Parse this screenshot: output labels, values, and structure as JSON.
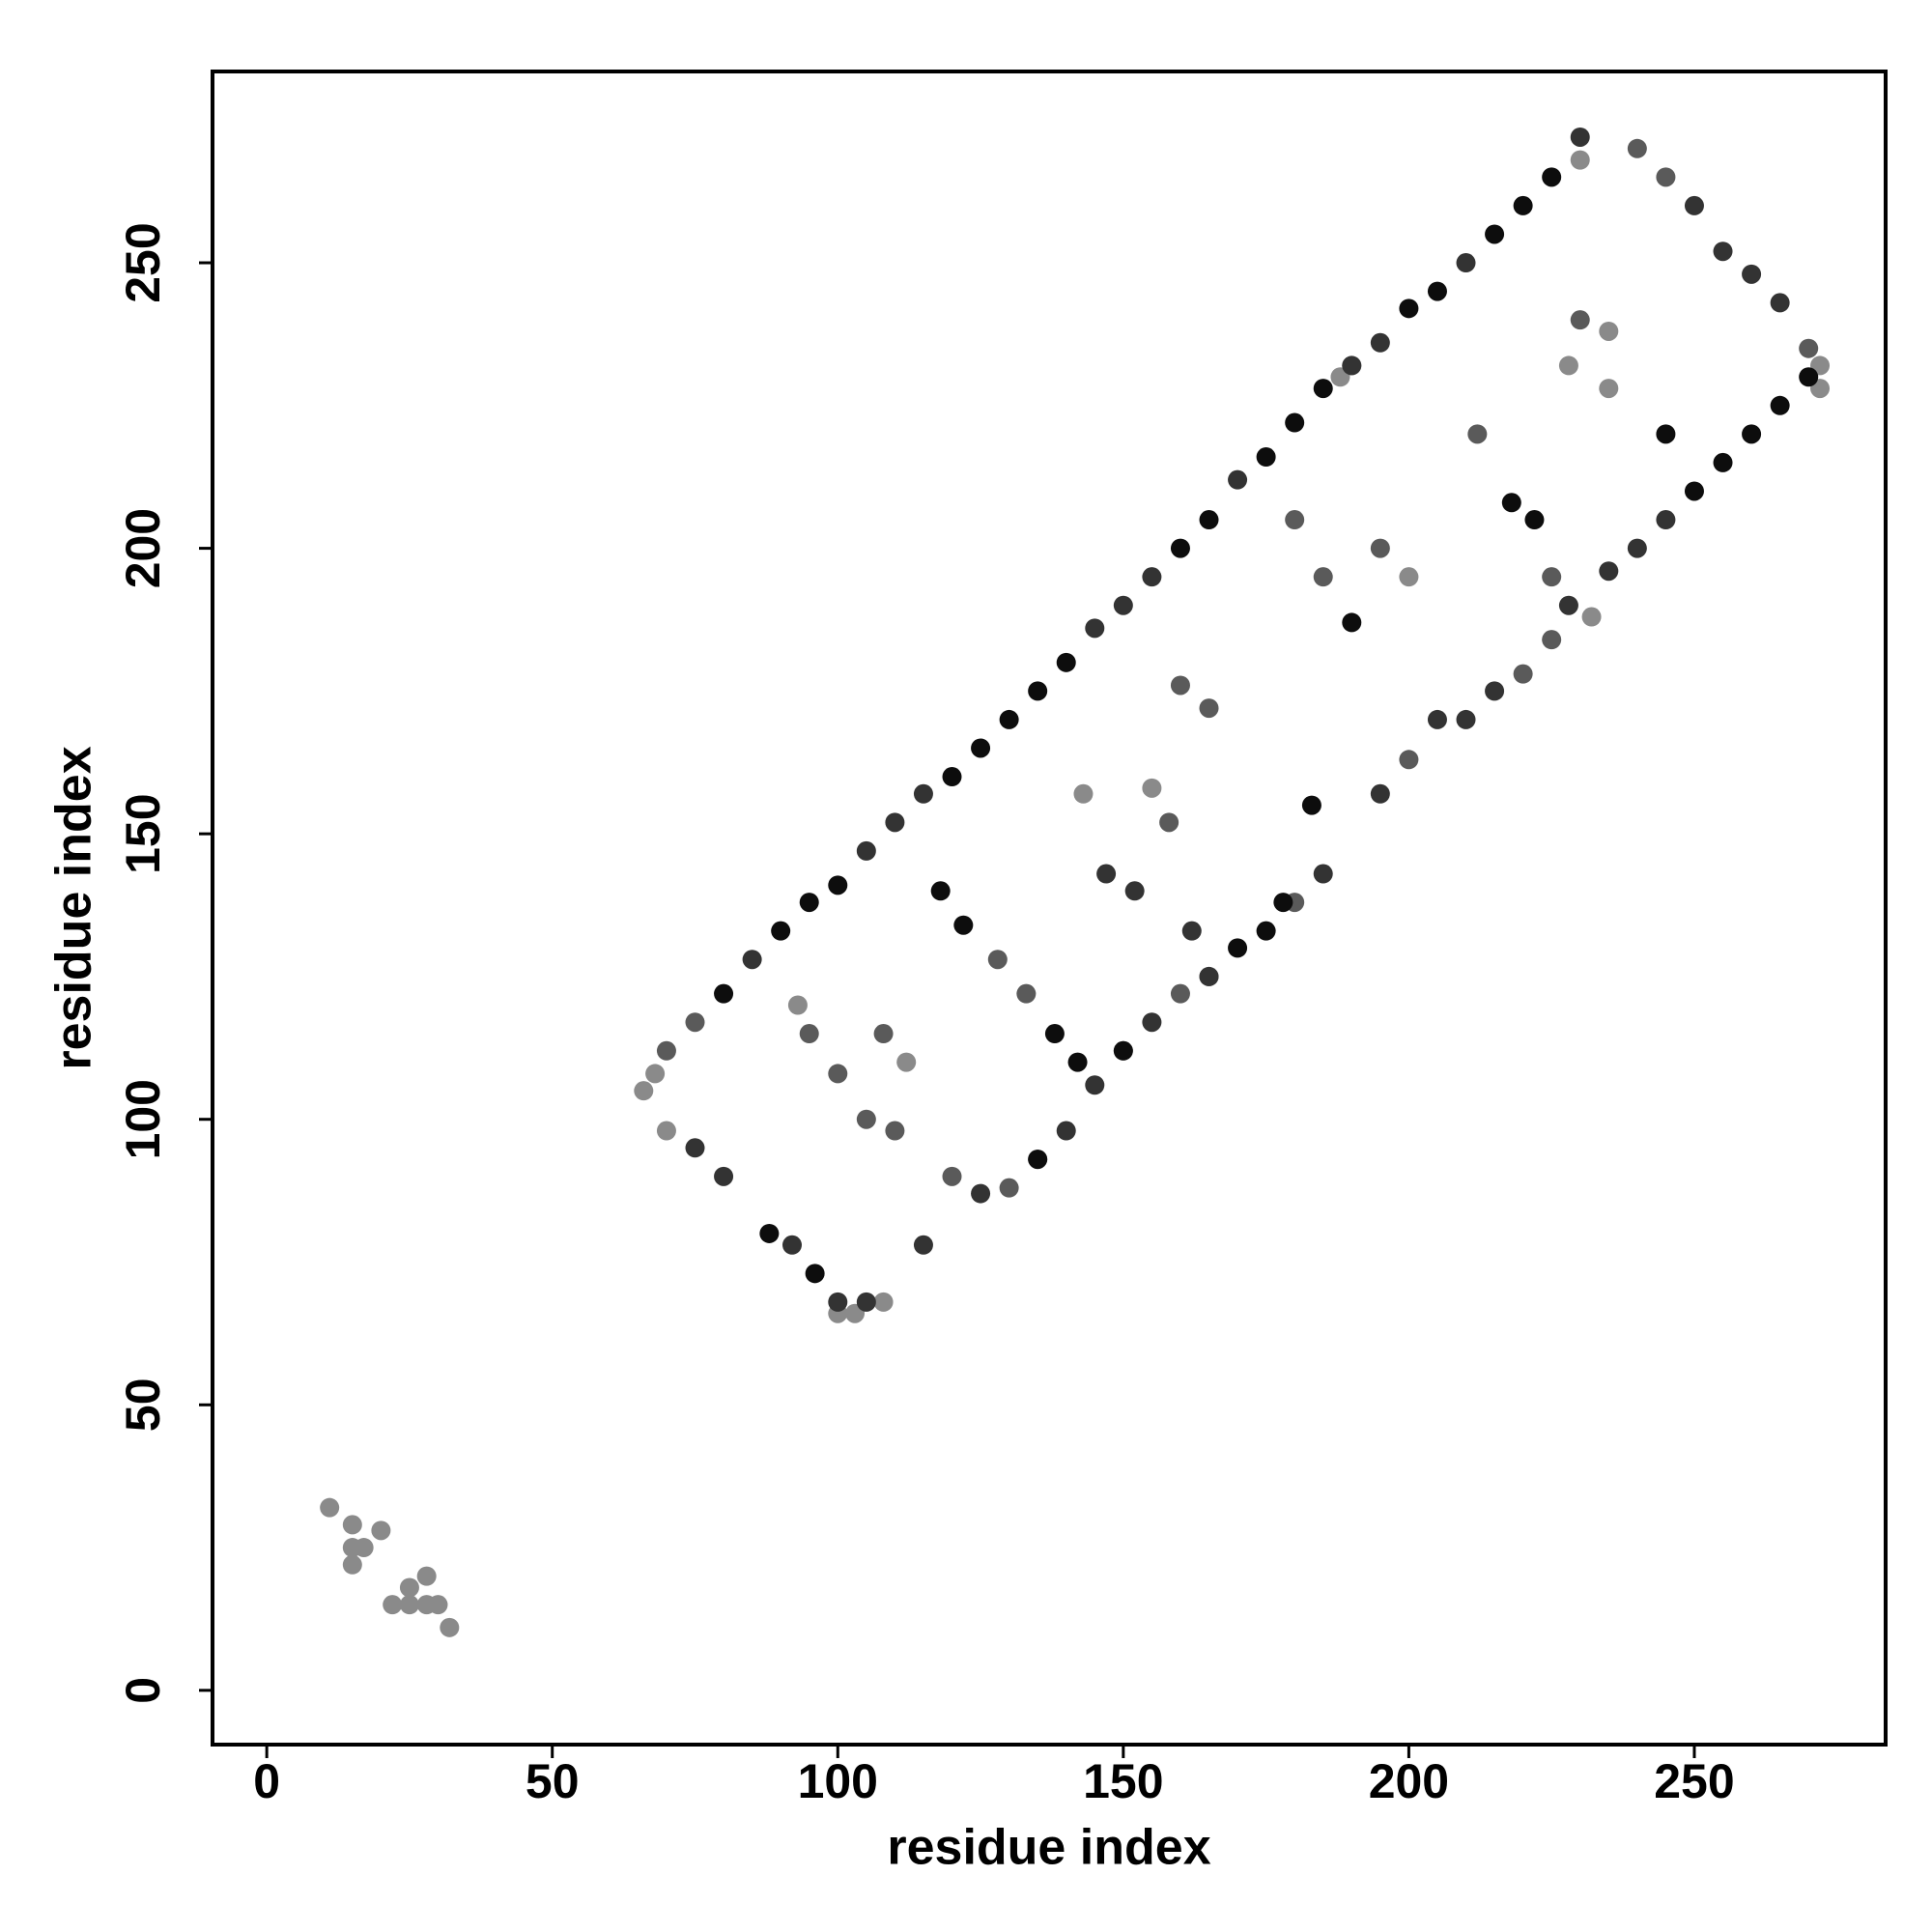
{
  "chart_data": {
    "type": "scatter",
    "xlabel": "residue index",
    "ylabel": "residue index",
    "xlim": [
      -9.5,
      283.5
    ],
    "ylim": [
      -9.5,
      283.5
    ],
    "xticks": [
      0,
      50,
      100,
      150,
      200,
      250
    ],
    "yticks": [
      0,
      50,
      100,
      150,
      200,
      250
    ],
    "grid": false,
    "series": [
      {
        "color": "#8a8a8a",
        "x": [
          66,
          68,
          70,
          100,
          103,
          108,
          11,
          15,
          15,
          15,
          17,
          20,
          22,
          25,
          25,
          28,
          28,
          30,
          32,
          272,
          272,
          230,
          235,
          228,
          232,
          112,
          200,
          155,
          190,
          235,
          188,
          143,
          93
        ],
        "values": [
          105,
          108,
          98,
          66,
          66,
          68,
          32,
          29,
          25,
          22,
          25,
          28,
          15,
          18,
          15,
          20,
          15,
          15,
          11,
          232,
          228,
          268,
          238,
          232,
          188,
          110,
          195,
          158,
          232,
          228,
          230,
          157,
          120
        ]
      },
      {
        "color": "#5a5a5a",
        "x": [
          70,
          75,
          110,
          120,
          130,
          135,
          150,
          160,
          165,
          180,
          200,
          220,
          225,
          240,
          245,
          270,
          95,
          100,
          105,
          128,
          133,
          160,
          165,
          180,
          185,
          212,
          225,
          230,
          108,
          158,
          195
        ],
        "values": [
          112,
          117,
          98,
          90,
          88,
          93,
          112,
          122,
          125,
          138,
          163,
          178,
          184,
          270,
          265,
          235,
          115,
          108,
          100,
          128,
          122,
          176,
          172,
          205,
          195,
          220,
          195,
          240,
          115,
          152,
          200
        ]
      },
      {
        "color": "#333333",
        "x": [
          85,
          105,
          110,
          115,
          145,
          150,
          155,
          170,
          190,
          195,
          210,
          230,
          105,
          115,
          125,
          140,
          145,
          155,
          165,
          185,
          195,
          210,
          215,
          235,
          240,
          245,
          255,
          260,
          265,
          75,
          80,
          92,
          100,
          147,
          152,
          162,
          205,
          228,
          250
        ],
        "values": [
          128,
          147,
          152,
          157,
          186,
          190,
          195,
          212,
          232,
          236,
          250,
          272,
          68,
          78,
          87,
          98,
          106,
          117,
          125,
          143,
          157,
          170,
          175,
          196,
          200,
          205,
          252,
          248,
          243,
          95,
          90,
          78,
          68,
          143,
          140,
          133,
          170,
          190,
          260
        ]
      },
      {
        "color": "#0d0d0d",
        "x": [
          80,
          90,
          95,
          100,
          120,
          125,
          130,
          135,
          140,
          160,
          165,
          175,
          180,
          185,
          200,
          205,
          215,
          220,
          225,
          250,
          255,
          260,
          265,
          270,
          88,
          96,
          118,
          122,
          138,
          142,
          183,
          190,
          218,
          222,
          245,
          178,
          170,
          135,
          150,
          175
        ],
        "values": [
          122,
          133,
          138,
          141,
          160,
          165,
          170,
          175,
          180,
          200,
          205,
          216,
          222,
          228,
          242,
          245,
          255,
          260,
          265,
          210,
          215,
          220,
          225,
          230,
          80,
          73,
          140,
          134,
          115,
          110,
          155,
          187,
          208,
          205,
          220,
          138,
          130,
          93,
          112,
          133
        ]
      }
    ]
  }
}
